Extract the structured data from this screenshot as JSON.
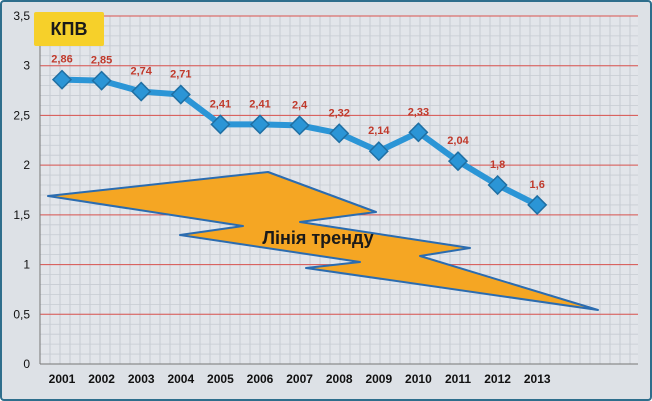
{
  "chart_data": {
    "type": "line",
    "title": "КПВ",
    "categories": [
      "2001",
      "2002",
      "2003",
      "2004",
      "2005",
      "2006",
      "2007",
      "2008",
      "2009",
      "2010",
      "2011",
      "2012",
      "2013"
    ],
    "values": [
      2.86,
      2.85,
      2.74,
      2.71,
      2.41,
      2.41,
      2.4,
      2.32,
      2.14,
      2.33,
      2.04,
      1.8,
      1.6
    ],
    "data_labels": [
      "2,86",
      "2,85",
      "2,74",
      "2,71",
      "2,41",
      "2,41",
      "2,4",
      "2,32",
      "2,14",
      "2,33",
      "2,04",
      "1,8",
      "1,6"
    ],
    "y_ticks": [
      0,
      0.5,
      1,
      1.5,
      2,
      2.5,
      3,
      3.5
    ],
    "y_tick_labels": [
      "0",
      "0,5",
      "1",
      "1,5",
      "2",
      "2,5",
      "3",
      "3,5"
    ],
    "ylim": [
      0,
      3.5
    ],
    "grid": true,
    "annotation": "Лінія тренду",
    "colors": {
      "series": "#2b95d6",
      "marker_stroke": "#1f6fa3",
      "label": "#c0392b",
      "grid_major": "#d9534f",
      "grid_minor": "#c6cbd2",
      "trend_fill": "#f5a623",
      "trend_stroke": "#2b6cb0",
      "title_box": "#f6d02a"
    }
  }
}
